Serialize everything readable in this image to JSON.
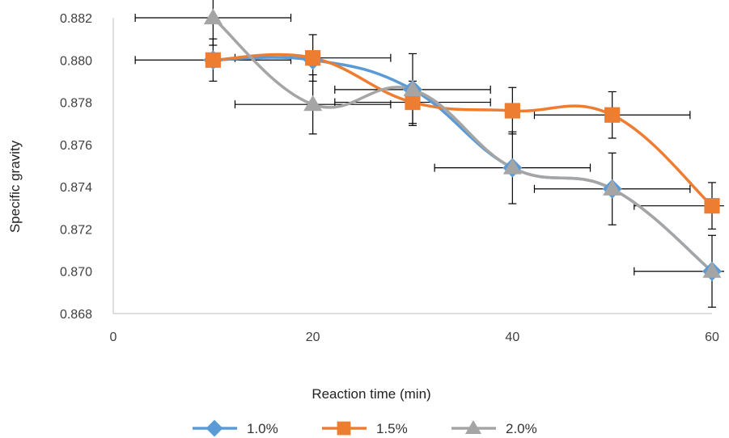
{
  "chart_data": {
    "type": "line",
    "title": "",
    "xlabel": "Reaction time (min)",
    "ylabel": "Specific gravity",
    "xlim": [
      0,
      60
    ],
    "ylim": [
      0.868,
      0.882
    ],
    "x_ticks": [
      "0",
      "20",
      "40",
      "60"
    ],
    "y_ticks": [
      "0.868",
      "0.870",
      "0.872",
      "0.874",
      "0.876",
      "0.878",
      "0.880",
      "0.882"
    ],
    "grid": false,
    "smooth": true,
    "legend_position": "bottom",
    "series": [
      {
        "name": "1.0%",
        "color": "#5B9BD5",
        "marker": "diamond",
        "x": [
          10,
          20,
          30,
          40,
          50,
          60
        ],
        "y": [
          0.88,
          0.88,
          0.8786,
          0.8749,
          0.8739,
          0.87
        ],
        "x_err": [
          0,
          0,
          0,
          0,
          0,
          0
        ],
        "y_err": [
          0,
          0,
          0,
          0,
          0,
          0
        ]
      },
      {
        "name": "1.5%",
        "color": "#ED7D31",
        "marker": "square",
        "x": [
          10,
          20,
          30,
          40,
          50,
          60
        ],
        "y": [
          0.88,
          0.8801,
          0.878,
          0.8776,
          0.8774,
          0.8731
        ],
        "x_err": [
          7.8,
          7.8,
          7.8,
          0,
          7.8,
          7.8
        ],
        "y_err": [
          0.001,
          0.0011,
          0.001,
          0.0011,
          0.0011,
          0.0011
        ]
      },
      {
        "name": "2.0%",
        "color": "#A5A5A5",
        "marker": "triangle",
        "x": [
          10,
          20,
          30,
          40,
          50,
          60
        ],
        "y": [
          0.882,
          0.8779,
          0.8786,
          0.8749,
          0.8739,
          0.87
        ],
        "x_err": [
          7.8,
          7.8,
          7.8,
          7.8,
          7.8,
          7.8
        ],
        "y_err": [
          0.0013,
          0.0014,
          0.0017,
          0.0017,
          0.0017,
          0.0017
        ]
      }
    ]
  }
}
